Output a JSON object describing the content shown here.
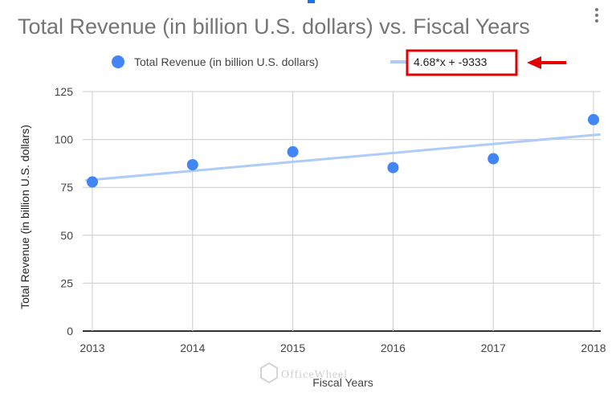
{
  "chart_data": {
    "type": "scatter",
    "title": "Total Revenue (in billion U.S. dollars) vs. Fiscal Years",
    "xlabel": "Fiscal Years",
    "ylabel": "Total Revenue (in billion U.S. dollars)",
    "x": [
      2013,
      2014,
      2015,
      2016,
      2017,
      2018
    ],
    "series": [
      {
        "name": "Total Revenue (in billion U.S. dollars)",
        "values": [
          77.85,
          86.83,
          93.58,
          85.32,
          89.95,
          110.36
        ],
        "color": "#4285f4"
      }
    ],
    "trendline": {
      "type": "linear",
      "label": "4.68*x + -9333",
      "color": "#aecbfa"
    },
    "xlim": [
      2013,
      2018
    ],
    "ylim": [
      0,
      125
    ],
    "yticks": [
      "0",
      "25",
      "50",
      "75",
      "100",
      "125"
    ],
    "xticks": [
      "2013",
      "2014",
      "2015",
      "2016",
      "2017",
      "2018"
    ],
    "grid": true,
    "legend": "top",
    "annotation": {
      "highlight": "trendline-label",
      "color": "#e00000"
    }
  },
  "watermark": "OfficeWheel"
}
